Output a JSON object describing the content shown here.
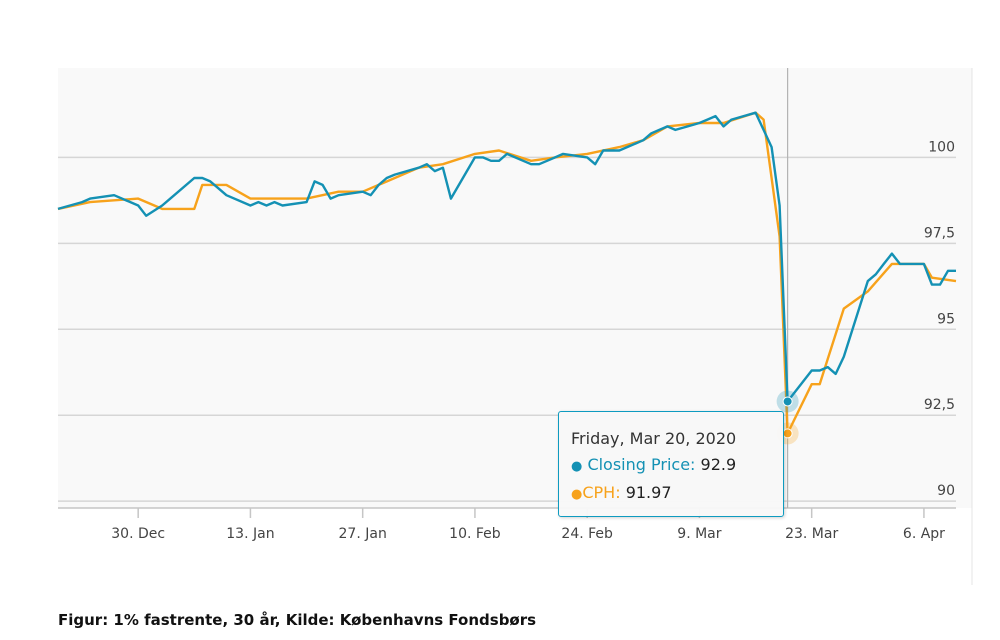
{
  "chart_data": {
    "type": "line",
    "title": "",
    "xlabel": "",
    "ylabel": "",
    "x_ticks": [
      "30. Dec",
      "13. Jan",
      "27. Jan",
      "10. Feb",
      "24. Feb",
      "9. Mar",
      "23. Mar",
      "6. Apr"
    ],
    "y_ticks": [
      "90",
      "92,5",
      "95",
      "97,5",
      "100"
    ],
    "ylim": [
      89.8,
      102.6
    ],
    "xlim": [
      "2019-12-20",
      "2020-04-10"
    ],
    "grid": true,
    "series": [
      {
        "name": "Closing Price",
        "color": "#1491b4",
        "points": [
          [
            "2019-12-20",
            98.5
          ],
          [
            "2019-12-23",
            98.7
          ],
          [
            "2019-12-24",
            98.8
          ],
          [
            "2019-12-27",
            98.9
          ],
          [
            "2019-12-30",
            98.6
          ],
          [
            "2019-12-31",
            98.3
          ],
          [
            "2020-01-02",
            98.6
          ],
          [
            "2020-01-03",
            98.8
          ],
          [
            "2020-01-06",
            99.4
          ],
          [
            "2020-01-07",
            99.4
          ],
          [
            "2020-01-08",
            99.3
          ],
          [
            "2020-01-09",
            99.1
          ],
          [
            "2020-01-10",
            98.9
          ],
          [
            "2020-01-13",
            98.6
          ],
          [
            "2020-01-14",
            98.7
          ],
          [
            "2020-01-15",
            98.6
          ],
          [
            "2020-01-16",
            98.7
          ],
          [
            "2020-01-17",
            98.6
          ],
          [
            "2020-01-20",
            98.7
          ],
          [
            "2020-01-21",
            99.3
          ],
          [
            "2020-01-22",
            99.2
          ],
          [
            "2020-01-23",
            98.8
          ],
          [
            "2020-01-24",
            98.9
          ],
          [
            "2020-01-27",
            99.0
          ],
          [
            "2020-01-28",
            98.9
          ],
          [
            "2020-01-29",
            99.2
          ],
          [
            "2020-01-30",
            99.4
          ],
          [
            "2020-01-31",
            99.5
          ],
          [
            "2020-02-03",
            99.7
          ],
          [
            "2020-02-04",
            99.8
          ],
          [
            "2020-02-05",
            99.6
          ],
          [
            "2020-02-06",
            99.7
          ],
          [
            "2020-02-07",
            98.8
          ],
          [
            "2020-02-10",
            100.0
          ],
          [
            "2020-02-11",
            100.0
          ],
          [
            "2020-02-12",
            99.9
          ],
          [
            "2020-02-13",
            99.9
          ],
          [
            "2020-02-14",
            100.1
          ],
          [
            "2020-02-17",
            99.8
          ],
          [
            "2020-02-18",
            99.8
          ],
          [
            "2020-02-19",
            99.9
          ],
          [
            "2020-02-20",
            100.0
          ],
          [
            "2020-02-21",
            100.1
          ],
          [
            "2020-02-24",
            100.0
          ],
          [
            "2020-02-25",
            99.8
          ],
          [
            "2020-02-26",
            100.2
          ],
          [
            "2020-02-27",
            100.2
          ],
          [
            "2020-02-28",
            100.2
          ],
          [
            "2020-03-02",
            100.5
          ],
          [
            "2020-03-03",
            100.7
          ],
          [
            "2020-03-04",
            100.8
          ],
          [
            "2020-03-05",
            100.9
          ],
          [
            "2020-03-06",
            100.8
          ],
          [
            "2020-03-09",
            101.0
          ],
          [
            "2020-03-10",
            101.1
          ],
          [
            "2020-03-11",
            101.2
          ],
          [
            "2020-03-12",
            100.9
          ],
          [
            "2020-03-13",
            101.1
          ],
          [
            "2020-03-16",
            101.3
          ],
          [
            "2020-03-17",
            100.8
          ],
          [
            "2020-03-18",
            100.3
          ],
          [
            "2020-03-19",
            98.6
          ],
          [
            "2020-03-20",
            92.9
          ],
          [
            "2020-03-23",
            93.8
          ],
          [
            "2020-03-24",
            93.8
          ],
          [
            "2020-03-25",
            93.9
          ],
          [
            "2020-03-26",
            93.7
          ],
          [
            "2020-03-27",
            94.2
          ],
          [
            "2020-03-30",
            96.4
          ],
          [
            "2020-03-31",
            96.6
          ],
          [
            "2020-04-01",
            96.9
          ],
          [
            "2020-04-02",
            97.2
          ],
          [
            "2020-04-03",
            96.9
          ],
          [
            "2020-04-06",
            96.9
          ],
          [
            "2020-04-07",
            96.3
          ],
          [
            "2020-04-08",
            96.3
          ],
          [
            "2020-04-09",
            96.7
          ],
          [
            "2020-04-10",
            96.7
          ]
        ]
      },
      {
        "name": "CPH",
        "color": "#f7a21b",
        "points": [
          [
            "2019-12-20",
            98.5
          ],
          [
            "2019-12-24",
            98.7
          ],
          [
            "2019-12-30",
            98.8
          ],
          [
            "2020-01-02",
            98.5
          ],
          [
            "2020-01-06",
            98.5
          ],
          [
            "2020-01-07",
            99.2
          ],
          [
            "2020-01-10",
            99.2
          ],
          [
            "2020-01-13",
            98.8
          ],
          [
            "2020-01-17",
            98.8
          ],
          [
            "2020-01-20",
            98.8
          ],
          [
            "2020-01-24",
            99.0
          ],
          [
            "2020-01-27",
            99.0
          ],
          [
            "2020-01-31",
            99.4
          ],
          [
            "2020-02-03",
            99.7
          ],
          [
            "2020-02-06",
            99.8
          ],
          [
            "2020-02-10",
            100.1
          ],
          [
            "2020-02-13",
            100.2
          ],
          [
            "2020-02-17",
            99.9
          ],
          [
            "2020-02-20",
            100.0
          ],
          [
            "2020-02-24",
            100.1
          ],
          [
            "2020-02-28",
            100.3
          ],
          [
            "2020-03-02",
            100.5
          ],
          [
            "2020-03-05",
            100.9
          ],
          [
            "2020-03-09",
            101.0
          ],
          [
            "2020-03-12",
            101.0
          ],
          [
            "2020-03-16",
            101.3
          ],
          [
            "2020-03-17",
            101.1
          ],
          [
            "2020-03-19",
            97.7
          ],
          [
            "2020-03-20",
            91.97
          ],
          [
            "2020-03-23",
            93.4
          ],
          [
            "2020-03-24",
            93.4
          ],
          [
            "2020-03-27",
            95.6
          ],
          [
            "2020-03-30",
            96.1
          ],
          [
            "2020-04-02",
            96.9
          ],
          [
            "2020-04-06",
            96.9
          ],
          [
            "2020-04-07",
            96.5
          ],
          [
            "2020-04-10",
            96.4
          ]
        ]
      }
    ],
    "highlight": {
      "date": "2020-03-20"
    }
  },
  "tooltip": {
    "date": "Friday, Mar 20, 2020",
    "rows": [
      {
        "label": "Closing Price:",
        "value": "92.9",
        "color": "#1491b4"
      },
      {
        "label": "CPH:",
        "value": "91.97",
        "color": "#f7a21b"
      }
    ]
  },
  "caption": "Figur: 1% fastrente, 30 år, Kilde: Københavns Fondsbørs"
}
